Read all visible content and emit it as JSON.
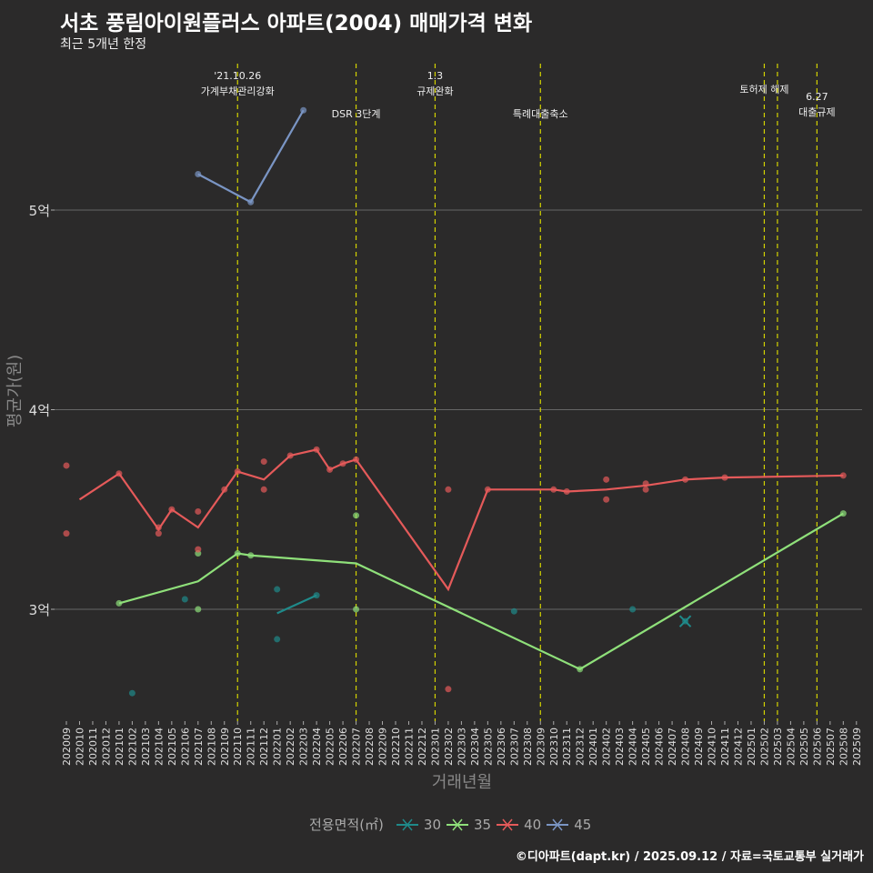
{
  "title": "서초 풍림아이원플러스 아파트(2004) 매매가격 변화",
  "subtitle": "최근 5개년 한정",
  "caption": "©디아파트(dapt.kr) / 2025.09.12 / 자료=국토교통부 실거래가",
  "chart_data": {
    "type": "line",
    "xlabel": "거래년월",
    "ylabel": "평균가(원)",
    "x_ticks": [
      "202009",
      "202010",
      "202011",
      "202012",
      "202101",
      "202102",
      "202103",
      "202104",
      "202105",
      "202106",
      "202107",
      "202108",
      "202109",
      "202110",
      "202111",
      "202112",
      "202201",
      "202202",
      "202203",
      "202204",
      "202205",
      "202206",
      "202207",
      "202208",
      "202209",
      "202210",
      "202211",
      "202212",
      "202301",
      "202302",
      "202303",
      "202304",
      "202305",
      "202306",
      "202307",
      "202308",
      "202309",
      "202310",
      "202311",
      "202312",
      "202401",
      "202402",
      "202403",
      "202404",
      "202405",
      "202406",
      "202407",
      "202408",
      "202409",
      "202410",
      "202411",
      "202412",
      "202501",
      "202502",
      "202503",
      "202504",
      "202505",
      "202506",
      "202507",
      "202508",
      "202509"
    ],
    "y_ticks": [
      {
        "value": 3,
        "label": "3억"
      },
      {
        "value": 4,
        "label": "4억"
      },
      {
        "value": 5,
        "label": "5억"
      }
    ],
    "ylim": [
      2.45,
      5.75
    ],
    "legend_title": "전용면적(㎡)",
    "series": [
      {
        "name": "30",
        "color": "#1f8a8a",
        "line": [
          [
            "202201",
            2.98
          ],
          [
            "202204",
            3.07
          ]
        ],
        "points": [
          [
            "202102",
            2.58
          ],
          [
            "202106",
            3.05
          ],
          [
            "202201",
            3.1
          ],
          [
            "202201",
            2.85
          ],
          [
            "202204",
            3.07
          ],
          [
            "202307",
            2.99
          ],
          [
            "202404",
            3.0
          ],
          [
            "202408",
            2.94
          ]
        ]
      },
      {
        "name": "35",
        "color": "#8fe07a",
        "line": [
          [
            "202101",
            3.03
          ],
          [
            "202107",
            3.14
          ],
          [
            "202110",
            3.28
          ],
          [
            "202111",
            3.27
          ],
          [
            "202207",
            3.23
          ],
          [
            "202312",
            2.7
          ],
          [
            "202508",
            3.48
          ]
        ],
        "points": [
          [
            "202101",
            3.03
          ],
          [
            "202107",
            3.28
          ],
          [
            "202107",
            3.0
          ],
          [
            "202110",
            3.28
          ],
          [
            "202111",
            3.27
          ],
          [
            "202207",
            3.47
          ],
          [
            "202207",
            3.0
          ],
          [
            "202312",
            2.7
          ],
          [
            "202508",
            3.48
          ]
        ]
      },
      {
        "name": "40",
        "color": "#e55a5a",
        "line": [
          [
            "202010",
            3.55
          ],
          [
            "202101",
            3.68
          ],
          [
            "202104",
            3.4
          ],
          [
            "202105",
            3.5
          ],
          [
            "202107",
            3.41
          ],
          [
            "202110",
            3.69
          ],
          [
            "202112",
            3.65
          ],
          [
            "202202",
            3.77
          ],
          [
            "202204",
            3.8
          ],
          [
            "202205",
            3.7
          ],
          [
            "202206",
            3.73
          ],
          [
            "202207",
            3.75
          ],
          [
            "202302",
            3.1
          ],
          [
            "202305",
            3.6
          ],
          [
            "202310",
            3.6
          ],
          [
            "202311",
            3.59
          ],
          [
            "202402",
            3.6
          ],
          [
            "202405",
            3.62
          ],
          [
            "202408",
            3.65
          ],
          [
            "202411",
            3.66
          ],
          [
            "202508",
            3.67
          ]
        ],
        "points": [
          [
            "202009",
            3.72
          ],
          [
            "202009",
            3.38
          ],
          [
            "202101",
            3.68
          ],
          [
            "202104",
            3.38
          ],
          [
            "202104",
            3.41
          ],
          [
            "202105",
            3.5
          ],
          [
            "202107",
            3.49
          ],
          [
            "202107",
            3.3
          ],
          [
            "202109",
            3.6
          ],
          [
            "202110",
            3.69
          ],
          [
            "202112",
            3.74
          ],
          [
            "202112",
            3.6
          ],
          [
            "202202",
            3.77
          ],
          [
            "202204",
            3.8
          ],
          [
            "202205",
            3.7
          ],
          [
            "202206",
            3.73
          ],
          [
            "202207",
            3.75
          ],
          [
            "202302",
            3.6
          ],
          [
            "202302",
            2.6
          ],
          [
            "202305",
            3.6
          ],
          [
            "202310",
            3.6
          ],
          [
            "202311",
            3.59
          ],
          [
            "202402",
            3.65
          ],
          [
            "202402",
            3.55
          ],
          [
            "202405",
            3.63
          ],
          [
            "202405",
            3.6
          ],
          [
            "202408",
            3.65
          ],
          [
            "202411",
            3.66
          ],
          [
            "202508",
            3.67
          ]
        ]
      },
      {
        "name": "45",
        "color": "#7a95c4",
        "line": [
          [
            "202107",
            5.18
          ],
          [
            "202111",
            5.04
          ],
          [
            "202203",
            5.5
          ]
        ],
        "points": [
          [
            "202107",
            5.18
          ],
          [
            "202111",
            5.04
          ],
          [
            "202203",
            5.5
          ]
        ]
      }
    ],
    "annotations": [
      {
        "month": "202110",
        "lines": [
          "'21.10.26",
          "가계부채관리강화"
        ],
        "level": 0
      },
      {
        "month": "202207",
        "lines": [
          "DSR 3단계"
        ],
        "level": 2
      },
      {
        "month": "202301",
        "lines": [
          "1.3",
          "규제완화"
        ],
        "level": 0
      },
      {
        "month": "202309",
        "lines": [
          "특례대출축소"
        ],
        "level": 2
      },
      {
        "month": "202502",
        "lines": [
          "토허제 해제"
        ],
        "level": 1
      },
      {
        "month": "202503",
        "lines": [],
        "level": 1
      },
      {
        "month": "202506",
        "lines": [
          "6.27",
          "대출규제"
        ],
        "level": 3
      }
    ]
  }
}
